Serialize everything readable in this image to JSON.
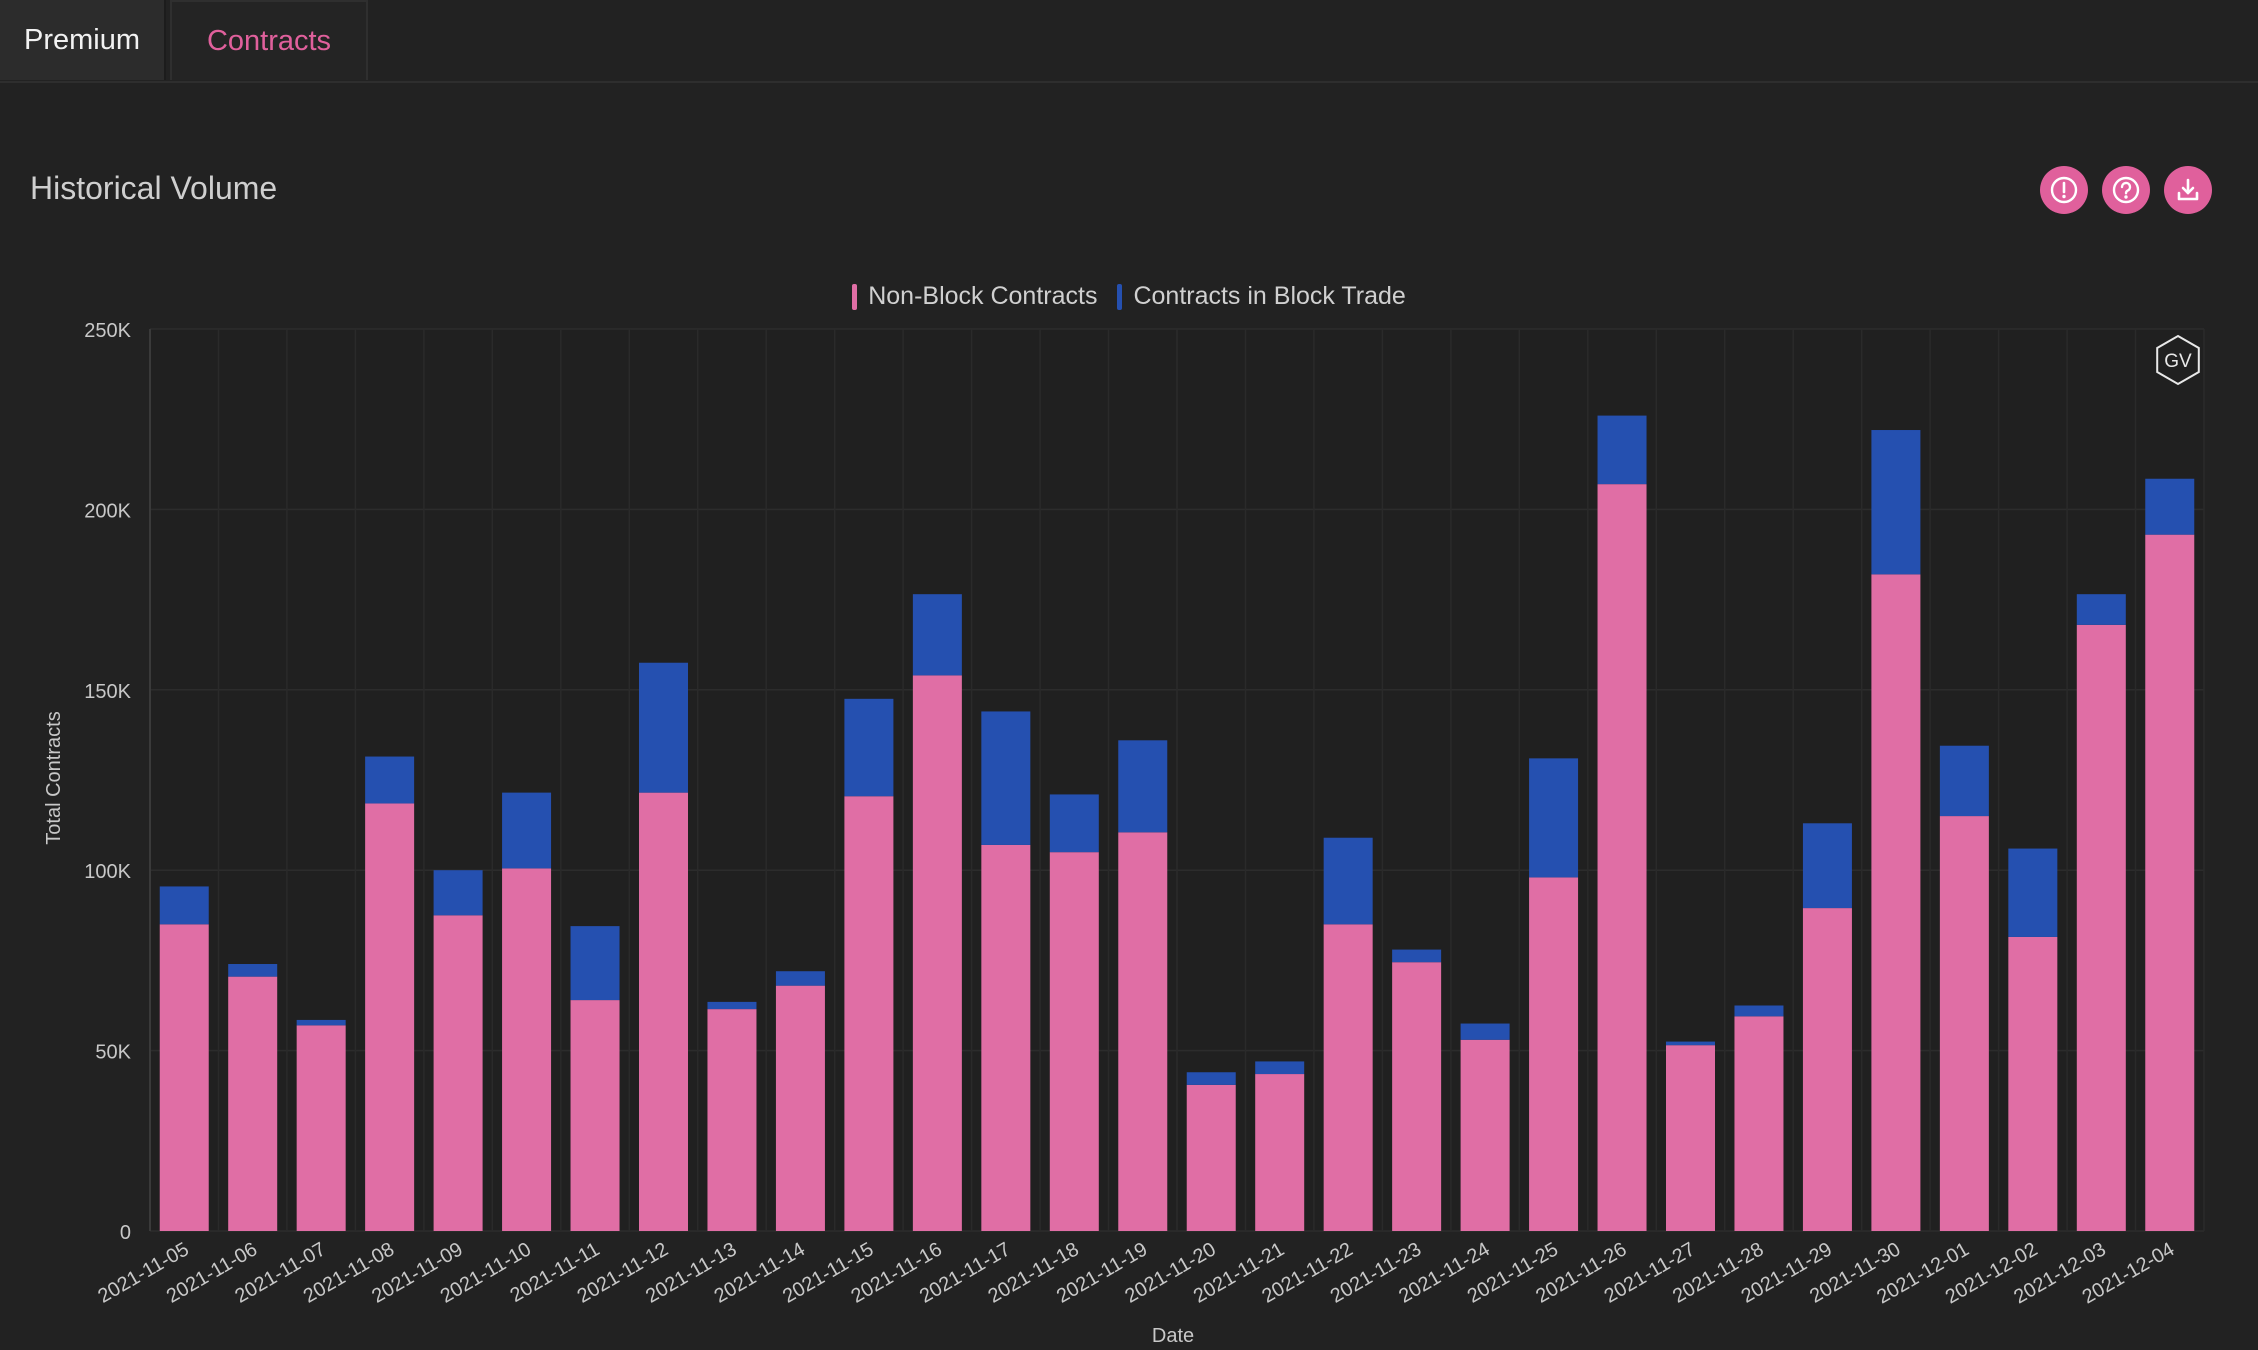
{
  "tabs": [
    {
      "label": "Premium",
      "active": false
    },
    {
      "label": "Contracts",
      "active": true
    }
  ],
  "panel": {
    "title": "Historical Volume",
    "buttons": [
      {
        "icon": "alert-icon",
        "name": "alert-button"
      },
      {
        "icon": "help-icon",
        "name": "help-button"
      },
      {
        "icon": "download-icon",
        "name": "download-button"
      }
    ]
  },
  "watermark": "GV",
  "colors": {
    "non_block": "#e06ea5",
    "block": "#2550b0",
    "accent": "#e0609c",
    "background": "#222222"
  },
  "chart_data": {
    "type": "bar",
    "stacked": true,
    "xlabel": "Date",
    "ylabel": "Total Contracts",
    "ylim": [
      0,
      250000
    ],
    "yticks": [
      "0",
      "50K",
      "100K",
      "150K",
      "200K",
      "250K"
    ],
    "legend_position": "top-center",
    "grid": true,
    "categories": [
      "2021-11-05",
      "2021-11-06",
      "2021-11-07",
      "2021-11-08",
      "2021-11-09",
      "2021-11-10",
      "2021-11-11",
      "2021-11-12",
      "2021-11-13",
      "2021-11-14",
      "2021-11-15",
      "2021-11-16",
      "2021-11-17",
      "2021-11-18",
      "2021-11-19",
      "2021-11-20",
      "2021-11-21",
      "2021-11-22",
      "2021-11-23",
      "2021-11-24",
      "2021-11-25",
      "2021-11-26",
      "2021-11-27",
      "2021-11-28",
      "2021-11-29",
      "2021-11-30",
      "2021-12-01",
      "2021-12-02",
      "2021-12-03",
      "2021-12-04"
    ],
    "series": [
      {
        "name": "Non-Block Contracts",
        "color": "#e06ea5",
        "values": [
          85000,
          70500,
          57000,
          118500,
          87500,
          100500,
          64000,
          121500,
          61500,
          68000,
          120500,
          154000,
          107000,
          105000,
          110500,
          40500,
          43500,
          85000,
          74500,
          53000,
          98000,
          207000,
          51500,
          59500,
          89500,
          182000,
          115000,
          81500,
          168000,
          193000
        ]
      },
      {
        "name": "Contracts in Block Trade",
        "color": "#2550b0",
        "values": [
          10500,
          3500,
          1500,
          13000,
          12500,
          21000,
          20500,
          36000,
          2000,
          4000,
          27000,
          22500,
          37000,
          16000,
          25500,
          3500,
          3500,
          24000,
          3500,
          4500,
          33000,
          19000,
          1000,
          3000,
          23500,
          40000,
          19500,
          24500,
          8500,
          15500
        ]
      }
    ]
  }
}
